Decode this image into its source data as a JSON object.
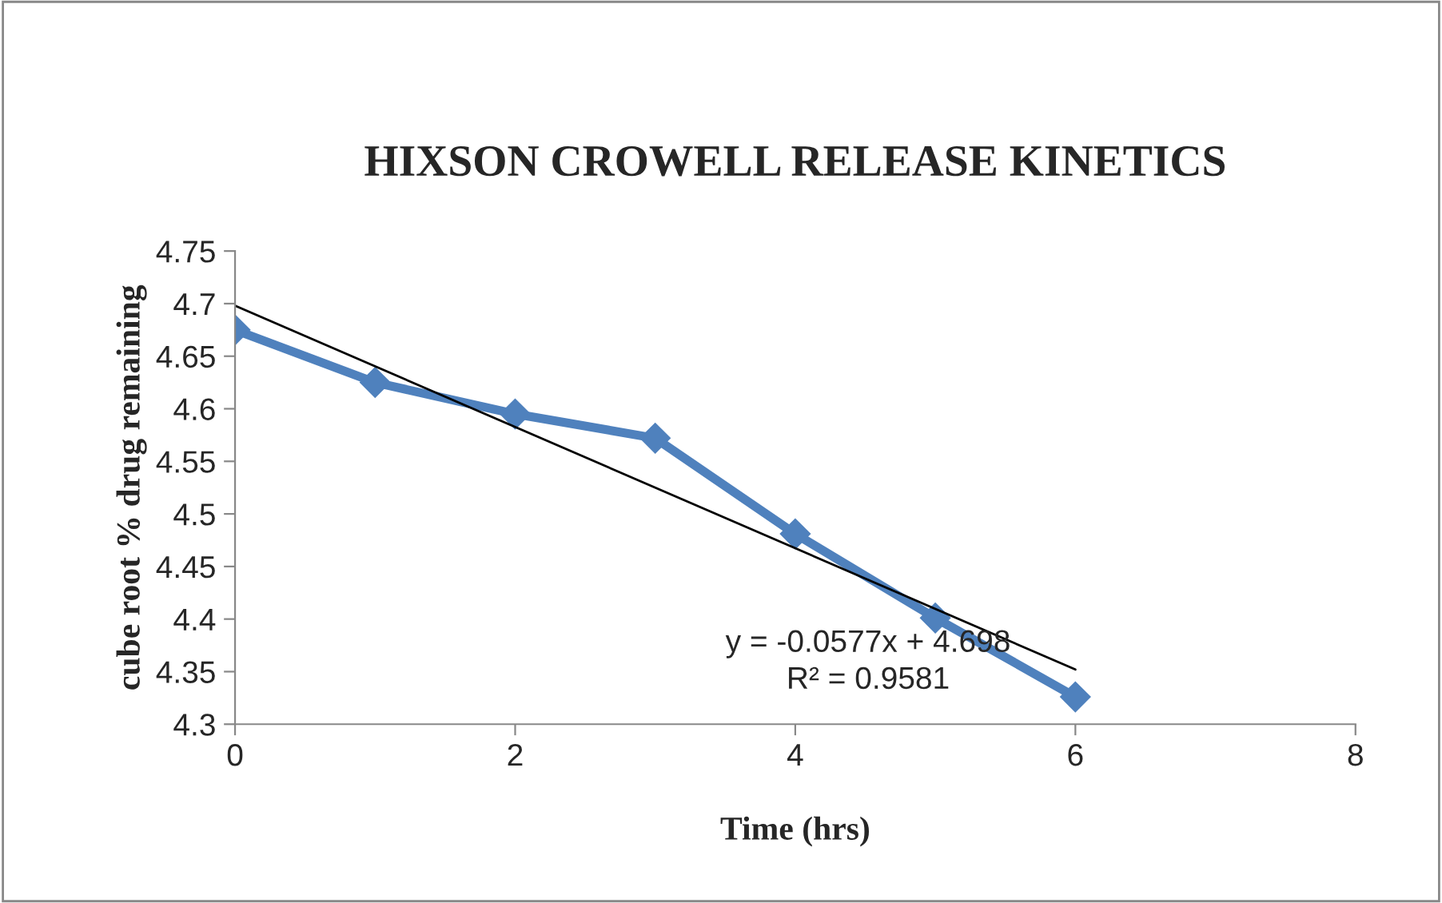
{
  "chart_data": {
    "type": "line",
    "title": "HIXSON CROWELL RELEASE KINETICS",
    "xlabel": "Time (hrs)",
    "ylabel": "cube root % drug remaining",
    "x": [
      0,
      1,
      2,
      3,
      4,
      5,
      6
    ],
    "series": [
      {
        "color": "#4f81bd",
        "values": [
          4.675,
          4.625,
          4.595,
          4.572,
          4.481,
          4.401,
          4.326
        ],
        "marker": "diamond"
      },
      {
        "color": "#000000",
        "x": [
          0,
          6
        ],
        "values": [
          4.698,
          4.352
        ],
        "marker": "none"
      }
    ],
    "annotations": [
      "y = -0.0577x + 4.698",
      "R² = 0.9581"
    ],
    "xlim": [
      0,
      8
    ],
    "xticks": [
      0,
      2,
      4,
      6,
      8
    ],
    "ylim": [
      4.3,
      4.75
    ],
    "yticks": [
      4.3,
      4.35,
      4.4,
      4.45,
      4.5,
      4.55,
      4.6,
      4.65,
      4.7,
      4.75
    ],
    "grid": false,
    "legend": false
  }
}
